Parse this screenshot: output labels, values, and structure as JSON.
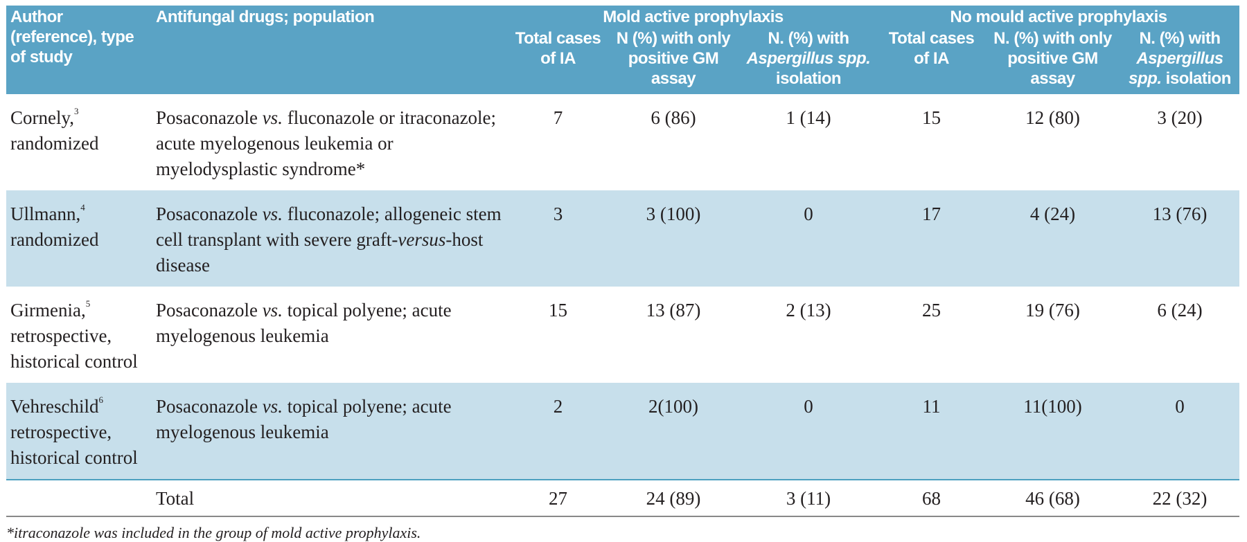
{
  "table": {
    "header": {
      "author": "Author (reference), type of study",
      "drugs": "Antifungal drugs; population",
      "groups": [
        "Mold active prophylaxis",
        "No mould active prophylaxis"
      ],
      "columns": [
        [
          "Total cases of IA"
        ],
        [
          "N (%) with only positive GM assay"
        ],
        [
          "N. (%) with ",
          {
            "text": "Aspergillus spp.",
            "style": "italic"
          },
          " isolation"
        ],
        [
          "Total cases of IA"
        ],
        [
          "N. (%) with only positive GM assay"
        ],
        [
          "N. (%) with ",
          {
            "text": "Aspergillus spp.",
            "style": "italic"
          },
          " isolation"
        ]
      ]
    },
    "rows": [
      [
        [
          "Cornely,",
          {
            "text": "3",
            "style": "sup"
          },
          " randomized"
        ],
        [
          "Posaconazole ",
          {
            "text": "vs.",
            "style": "italic"
          },
          " fluconazole or itraconazole; acute myelogenous leukemia or myelodysplastic syndrome*"
        ],
        "7",
        "6 (86)",
        "1 (14)",
        "15",
        "12 (80)",
        "3 (20)"
      ],
      [
        [
          "Ullmann,",
          {
            "text": "4",
            "style": "sup"
          },
          " randomized"
        ],
        [
          "Posaconazole ",
          {
            "text": "vs.",
            "style": "italic"
          },
          " fluconazole; allogeneic stem cell transplant with severe graft-",
          {
            "text": "versus",
            "style": "italic"
          },
          "-host disease"
        ],
        "3",
        "3 (100)",
        "0",
        "17",
        "4 (24)",
        "13 (76)"
      ],
      [
        [
          "Girmenia,",
          {
            "text": "5",
            "style": "sup"
          },
          " retrospective, historical control"
        ],
        [
          "Posaconazole ",
          {
            "text": "vs.",
            "style": "italic"
          },
          " topical polyene; acute myelogenous leukemia"
        ],
        "15",
        "13 (87)",
        "2 (13)",
        "25",
        "19 (76)",
        "6 (24)"
      ],
      [
        [
          "Vehreschild",
          {
            "text": "6",
            "style": "sup"
          },
          " retrospective, historical control"
        ],
        [
          "Posaconazole ",
          {
            "text": "vs.",
            "style": "italic"
          },
          " topical polyene; acute myelogenous leukemia"
        ],
        "2",
        "2(100)",
        "0",
        "11",
        "11(100)",
        "0"
      ],
      [
        "",
        "Total",
        "27",
        "24 (89)",
        "3 (11)",
        "68",
        "46 (68)",
        "22 (32)"
      ]
    ]
  },
  "footnote": "*itraconazole was included in the group of mold active prophylaxis."
}
